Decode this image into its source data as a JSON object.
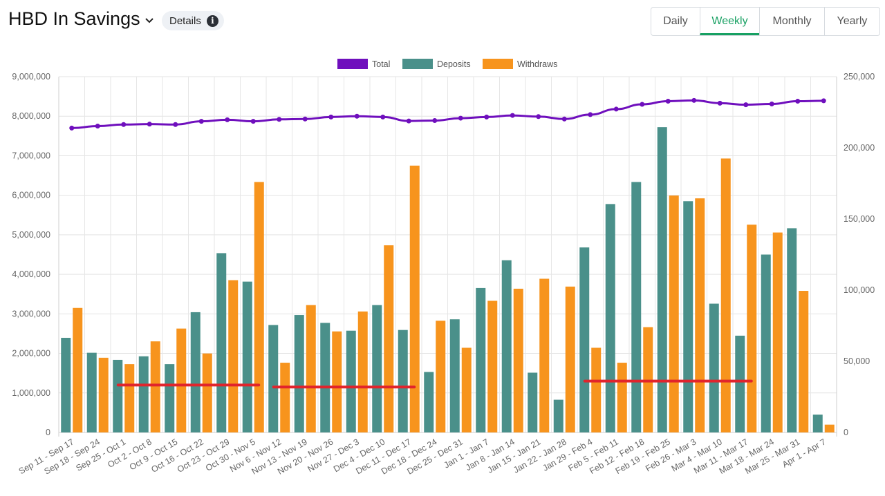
{
  "header": {
    "title": "HBD In Savings",
    "details_label": "Details",
    "tabs": [
      {
        "label": "Daily",
        "active": false
      },
      {
        "label": "Weekly",
        "active": true
      },
      {
        "label": "Monthly",
        "active": false
      },
      {
        "label": "Yearly",
        "active": false
      }
    ]
  },
  "chart_data": {
    "type": "bar",
    "legend_position": "top",
    "grid": true,
    "categories": [
      "Sep 11 - Sep 17",
      "Sep 18 - Sep 24",
      "Sep 25 - Oct 1",
      "Oct 2 - Oct 8",
      "Oct 9 - Oct 15",
      "Oct 16 - Oct 22",
      "Oct 23 - Oct 29",
      "Oct 30 - Nov 5",
      "Nov 6 - Nov 12",
      "Nov 13 - Nov 19",
      "Nov 20 - Nov 26",
      "Nov 27 - Dec 3",
      "Dec 4 - Dec 10",
      "Dec 11 - Dec 17",
      "Dec 18 - Dec 24",
      "Dec 25 - Dec 31",
      "Jan 1 - Jan 7",
      "Jan 8 - Jan 14",
      "Jan 15 - Jan 21",
      "Jan 22 - Jan 28",
      "Jan 29 - Feb 4",
      "Feb 5 - Feb 11",
      "Feb 12 - Feb 18",
      "Feb 19 - Feb 25",
      "Feb 26 - Mar 3",
      "Mar 4 - Mar 10",
      "Mar 11 - Mar 17",
      "Mar 18 - Mar 24",
      "Mar 25 - Mar 31",
      "Apr 1 - Apr 7"
    ],
    "y_left": {
      "min": 0,
      "max": 9000000,
      "ticks": [
        "0",
        "1,000,000",
        "2,000,000",
        "3,000,000",
        "4,000,000",
        "5,000,000",
        "6,000,000",
        "7,000,000",
        "8,000,000",
        "9,000,000"
      ]
    },
    "y_right": {
      "min": 0,
      "max": 250000,
      "ticks": [
        "0",
        "50,000",
        "100,000",
        "150,000",
        "200,000",
        "250,000"
      ]
    },
    "series": [
      {
        "name": "Total",
        "kind": "line",
        "axis": "left",
        "color": "#6f0fbd",
        "values": [
          7700000,
          7750000,
          7790000,
          7800000,
          7790000,
          7870000,
          7910000,
          7870000,
          7920000,
          7930000,
          7980000,
          8000000,
          7980000,
          7880000,
          7890000,
          7950000,
          7980000,
          8020000,
          7990000,
          7930000,
          8040000,
          8180000,
          8300000,
          8380000,
          8400000,
          8330000,
          8290000,
          8310000,
          8380000,
          8390000
        ]
      },
      {
        "name": "Deposits",
        "kind": "bar",
        "axis": "right",
        "color": "#4a908a",
        "values": [
          66500,
          56000,
          51000,
          53500,
          48000,
          84500,
          126000,
          106000,
          75500,
          82500,
          77000,
          71500,
          89500,
          72000,
          42500,
          79500,
          101500,
          121000,
          42000,
          23000,
          130000,
          160500,
          176000,
          214500,
          162500,
          90500,
          68000,
          125000,
          143500,
          12500
        ]
      },
      {
        "name": "Withdraws",
        "kind": "bar",
        "axis": "right",
        "color": "#f7941d",
        "values": [
          87500,
          52500,
          48000,
          64000,
          73000,
          55500,
          107000,
          176000,
          49000,
          89500,
          71000,
          85000,
          131500,
          187500,
          78500,
          59500,
          92500,
          101000,
          108000,
          102500,
          59500,
          49000,
          74000,
          166500,
          164500,
          192500,
          146000,
          140500,
          99500,
          5500
        ]
      }
    ],
    "annotations": {
      "color": "#e1242c",
      "lines": [
        {
          "from": 2,
          "to": 7,
          "value": 1200000
        },
        {
          "from": 8,
          "to": 13,
          "value": 1150000
        },
        {
          "from": 20,
          "to": 26,
          "value": 1300000
        }
      ]
    }
  }
}
